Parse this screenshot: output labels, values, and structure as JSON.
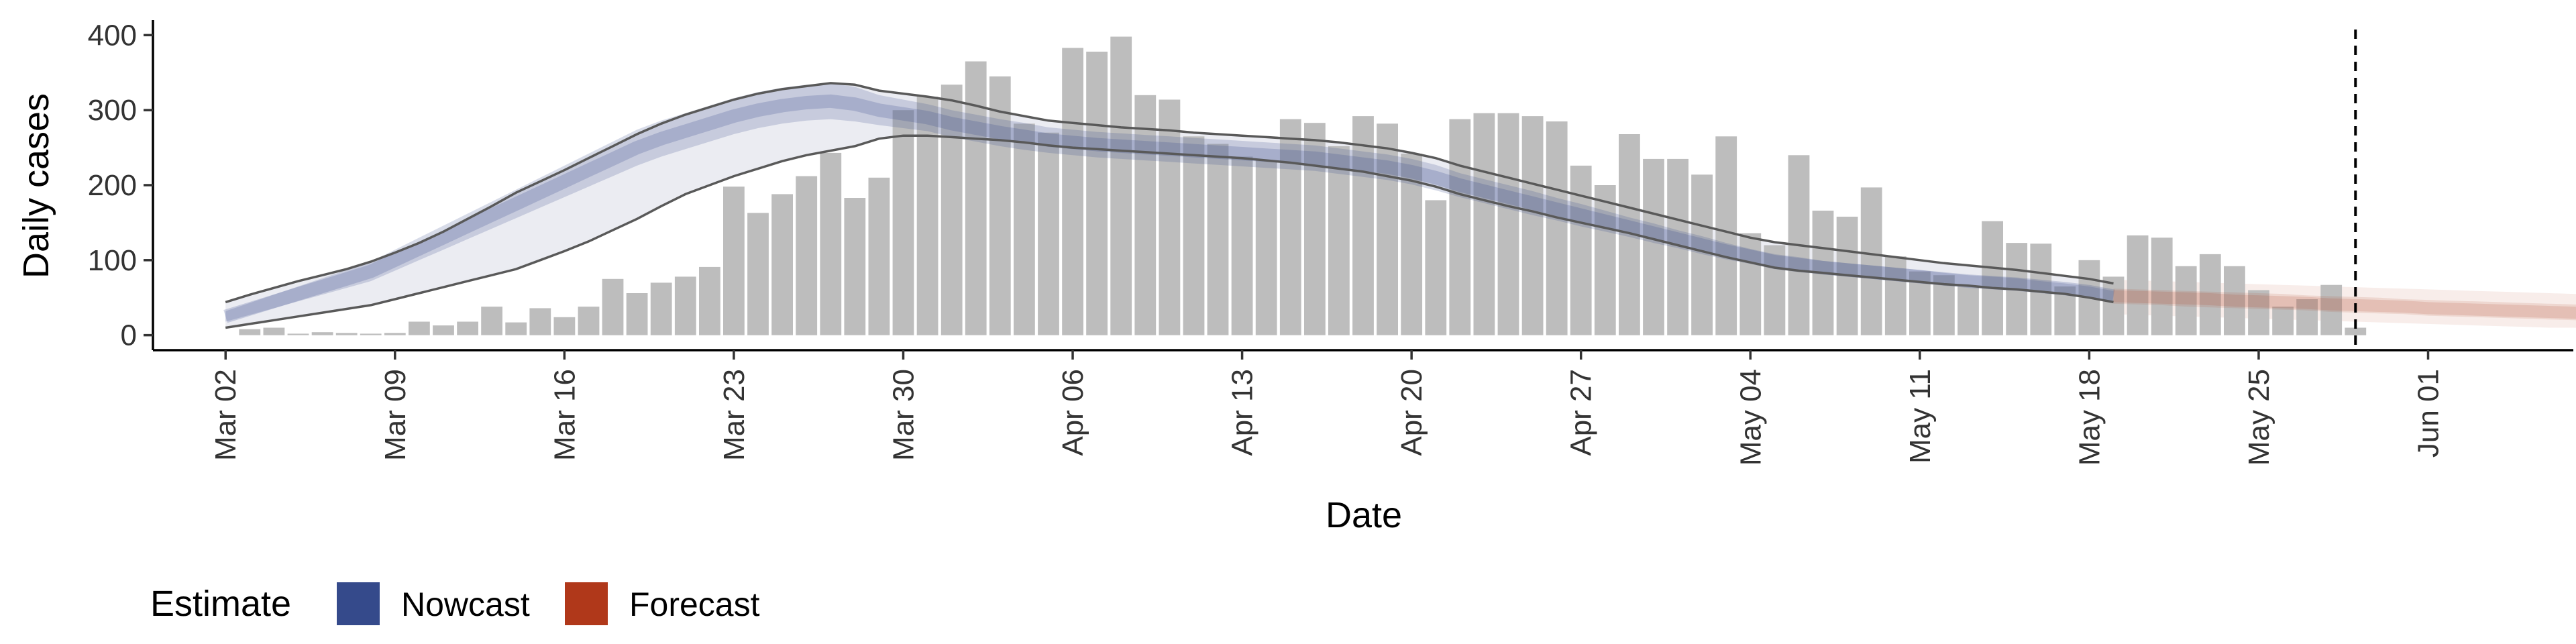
{
  "chart_data": {
    "type": "bar",
    "title": "",
    "xlabel": "Date",
    "ylabel": "Daily cases",
    "ylim": [
      -20,
      420
    ],
    "xlim": [
      "2020-02-28",
      "2020-06-07"
    ],
    "yticks": [
      0,
      100,
      200,
      300,
      400
    ],
    "xticks": [
      {
        "date": "2020-03-02",
        "label": "Mar 02"
      },
      {
        "date": "2020-03-09",
        "label": "Mar 09"
      },
      {
        "date": "2020-03-16",
        "label": "Mar 16"
      },
      {
        "date": "2020-03-23",
        "label": "Mar 23"
      },
      {
        "date": "2020-03-30",
        "label": "Mar 30"
      },
      {
        "date": "2020-04-06",
        "label": "Apr 06"
      },
      {
        "date": "2020-04-13",
        "label": "Apr 13"
      },
      {
        "date": "2020-04-20",
        "label": "Apr 20"
      },
      {
        "date": "2020-04-27",
        "label": "Apr 27"
      },
      {
        "date": "2020-05-04",
        "label": "May 04"
      },
      {
        "date": "2020-05-11",
        "label": "May 11"
      },
      {
        "date": "2020-05-18",
        "label": "May 18"
      },
      {
        "date": "2020-05-25",
        "label": "May 25"
      },
      {
        "date": "2020-06-01",
        "label": "Jun 01"
      }
    ],
    "grid": false,
    "legend": {
      "placement": "bottom-left",
      "title": "Estimate",
      "entries": [
        {
          "label": "Nowcast",
          "color": "#354a8b"
        },
        {
          "label": "Forecast",
          "color": "#b0381a"
        }
      ]
    },
    "reference_line": {
      "date": "2020-05-29",
      "style": "dashed"
    },
    "colors": {
      "bars": "#bdbdbd",
      "nowcast": "#354a8b",
      "forecast": "#b0381a",
      "bound_lines": "#595959",
      "outer_band": "#e9eaf1",
      "reference_line": "#000000"
    },
    "bars": {
      "start": "2020-03-03",
      "values": [
        8,
        10,
        2,
        4,
        3,
        2,
        3,
        18,
        13,
        18,
        38,
        17,
        36,
        24,
        38,
        75,
        56,
        70,
        78,
        91,
        198,
        163,
        188,
        212,
        243,
        183,
        210,
        300,
        318,
        334,
        365,
        345,
        282,
        270,
        383,
        378,
        398,
        320,
        314,
        265,
        255,
        238,
        233,
        288,
        283,
        252,
        292,
        282,
        242,
        180,
        288,
        296,
        296,
        292,
        285,
        226,
        200,
        268,
        235,
        235,
        214,
        265,
        136,
        120,
        240,
        166,
        158,
        197,
        105,
        85,
        80,
        65,
        152,
        123,
        122,
        65,
        100,
        78,
        133,
        130,
        92,
        108,
        92,
        60,
        38,
        48,
        67,
        10
      ]
    },
    "nowcast_band": {
      "start": "2020-03-02",
      "mid": [
        25,
        35,
        45,
        55,
        65,
        75,
        85,
        100,
        115,
        130,
        145,
        160,
        175,
        190,
        205,
        220,
        235,
        250,
        262,
        272,
        282,
        292,
        300,
        306,
        310,
        312,
        308,
        300,
        295,
        290,
        282,
        276,
        270,
        265,
        260,
        257,
        254,
        252,
        250,
        248,
        246,
        244,
        242,
        240,
        238,
        236,
        232,
        228,
        224,
        218,
        210,
        200,
        192,
        184,
        176,
        168,
        160,
        152,
        144,
        136,
        128,
        120,
        112,
        105,
        98,
        94,
        90,
        87,
        84,
        81,
        78,
        75,
        72,
        70,
        68,
        65,
        62,
        58,
        52
      ],
      "inner_lo": [
        18,
        27,
        36,
        45,
        54,
        63,
        72,
        86,
        100,
        114,
        128,
        142,
        156,
        170,
        184,
        198,
        212,
        226,
        238,
        248,
        258,
        268,
        276,
        282,
        286,
        288,
        285,
        280,
        276,
        272,
        264,
        258,
        252,
        247,
        243,
        240,
        237,
        235,
        233,
        231,
        229,
        227,
        225,
        223,
        221,
        219,
        215,
        211,
        207,
        201,
        193,
        184,
        176,
        168,
        160,
        153,
        145,
        138,
        131,
        123,
        116,
        108,
        101,
        95,
        88,
        84,
        81,
        78,
        75,
        72,
        69,
        67,
        64,
        62,
        60,
        58,
        55,
        51,
        45
      ],
      "inner_hi": [
        32,
        43,
        54,
        65,
        76,
        87,
        98,
        114,
        130,
        146,
        162,
        178,
        194,
        210,
        226,
        242,
        258,
        274,
        286,
        296,
        306,
        316,
        324,
        330,
        334,
        336,
        331,
        320,
        314,
        308,
        300,
        294,
        288,
        283,
        277,
        274,
        271,
        269,
        267,
        265,
        263,
        261,
        259,
        257,
        255,
        253,
        249,
        245,
        241,
        235,
        227,
        216,
        208,
        200,
        192,
        183,
        175,
        166,
        157,
        149,
        140,
        132,
        123,
        115,
        108,
        104,
        99,
        96,
        93,
        90,
        87,
        83,
        80,
        78,
        76,
        72,
        69,
        65,
        59
      ],
      "outer_lo": [
        10,
        15,
        20,
        25,
        30,
        35,
        40,
        48,
        56,
        64,
        72,
        80,
        88,
        100,
        112,
        125,
        140,
        155,
        172,
        188,
        200,
        212,
        222,
        232,
        240,
        246,
        252,
        262,
        266,
        266,
        264,
        262,
        260,
        257,
        253,
        250,
        248,
        246,
        244,
        242,
        240,
        238,
        236,
        233,
        230,
        226,
        222,
        218,
        212,
        206,
        198,
        188,
        180,
        172,
        165,
        157,
        150,
        143,
        136,
        128,
        120,
        112,
        104,
        97,
        90,
        86,
        83,
        80,
        77,
        74,
        71,
        68,
        66,
        63,
        61,
        58,
        55,
        50,
        44
      ],
      "outer_hi": [
        44,
        54,
        63,
        72,
        80,
        88,
        98,
        110,
        123,
        138,
        155,
        172,
        190,
        205,
        220,
        236,
        252,
        268,
        282,
        294,
        304,
        314,
        322,
        328,
        332,
        336,
        334,
        326,
        322,
        318,
        313,
        306,
        298,
        292,
        286,
        283,
        280,
        277,
        275,
        273,
        270,
        268,
        266,
        264,
        262,
        260,
        257,
        253,
        249,
        243,
        236,
        226,
        218,
        210,
        202,
        194,
        186,
        178,
        170,
        162,
        154,
        146,
        138,
        130,
        124,
        120,
        116,
        112,
        108,
        104,
        100,
        96,
        93,
        90,
        87,
        83,
        79,
        75,
        69
      ]
    },
    "forecast_band": {
      "start": "2020-05-19",
      "mid": [
        52,
        51,
        50,
        49,
        48,
        46,
        45,
        44,
        43,
        41,
        40,
        39,
        38,
        36,
        35,
        34,
        33,
        32,
        31,
        30,
        29,
        28,
        27,
        26
      ],
      "inner_lo": [
        42,
        41,
        40,
        38,
        37,
        36,
        35,
        34,
        33,
        31,
        30,
        29,
        28,
        26,
        25,
        24,
        23,
        22,
        21,
        20,
        19,
        19,
        18,
        17
      ],
      "inner_hi": [
        62,
        61,
        60,
        59,
        58,
        57,
        56,
        55,
        53,
        52,
        51,
        50,
        48,
        47,
        46,
        45,
        44,
        43,
        42,
        41,
        40,
        39,
        38,
        37
      ],
      "outer_lo": [
        28,
        27,
        26,
        25,
        24,
        23,
        22,
        21,
        20,
        19,
        18,
        17,
        16,
        15,
        14,
        13,
        12,
        11,
        10,
        10,
        9,
        9,
        8,
        8
      ],
      "outer_hi": [
        74,
        73,
        72,
        71,
        70,
        69,
        68,
        67,
        66,
        65,
        64,
        63,
        62,
        61,
        60,
        59,
        58,
        57,
        56,
        55,
        54,
        53,
        52,
        51
      ]
    }
  }
}
